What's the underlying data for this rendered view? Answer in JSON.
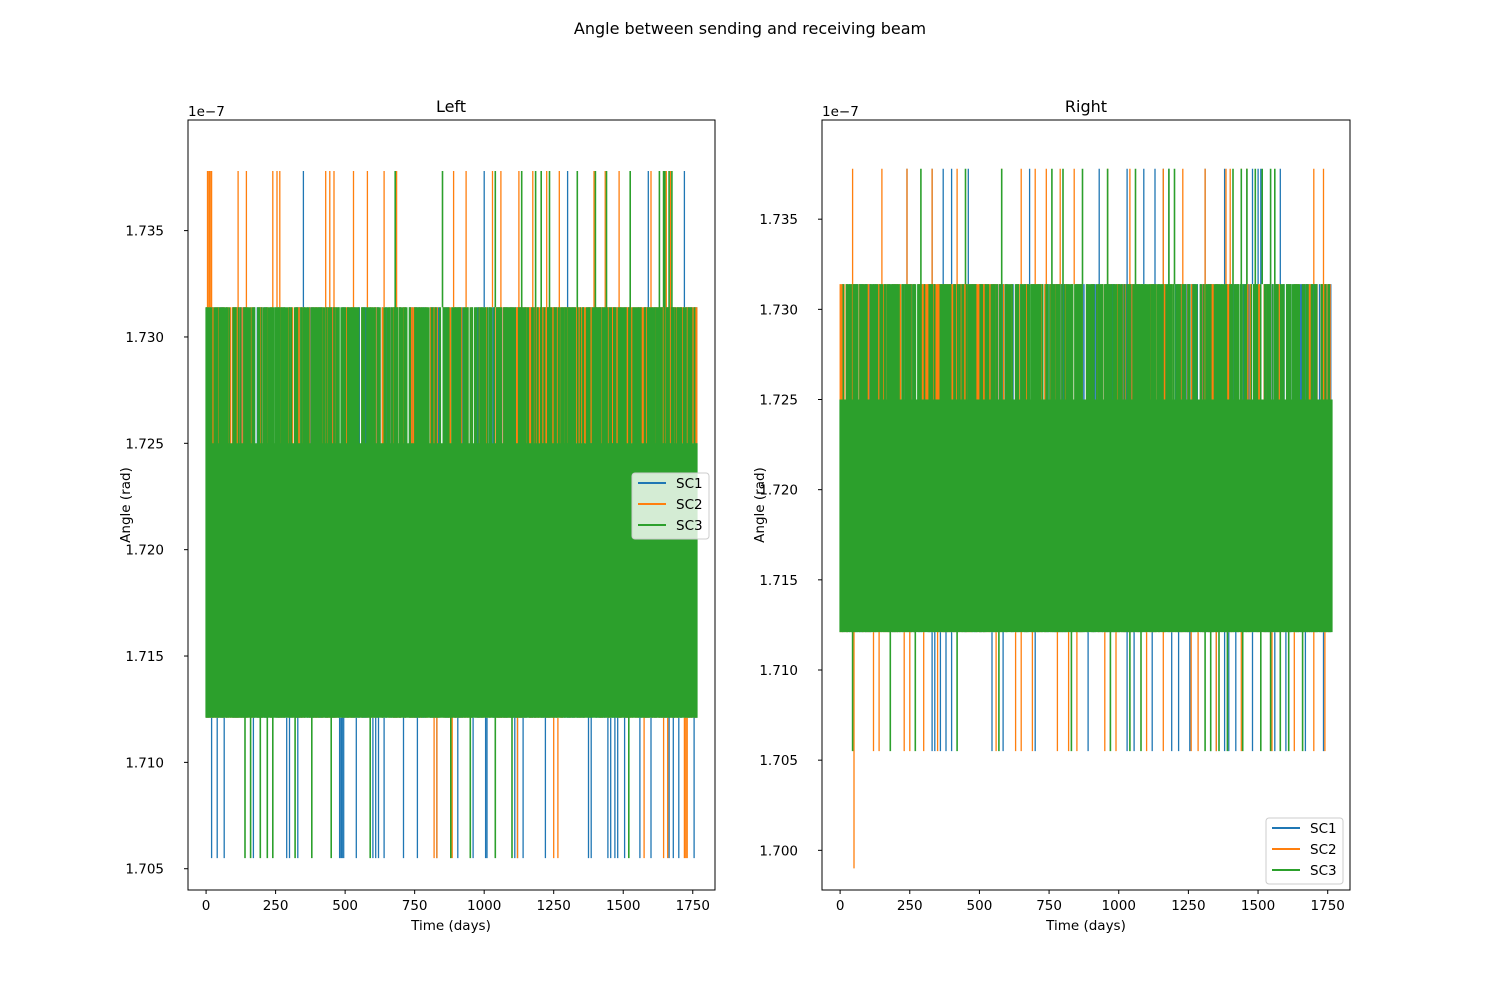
{
  "figure": {
    "suptitle": "Angle between sending and receiving beam"
  },
  "colors": {
    "SC1": "#1f77b4",
    "SC2": "#ff7f0e",
    "SC3": "#2ca02c",
    "axes": "#000000",
    "background": "#ffffff"
  },
  "chart_data": [
    {
      "type": "line",
      "title": "Left",
      "xlabel": "Time (days)",
      "ylabel": "Angle (rad)",
      "y_offset_text": "1e−7",
      "xlim": [
        -65,
        1830
      ],
      "ylim": [
        1.704,
        1.7402
      ],
      "xticks": [
        0,
        250,
        500,
        750,
        1000,
        1250,
        1500,
        1750
      ],
      "yticks": [
        1.705,
        1.71,
        1.715,
        1.72,
        1.725,
        1.73,
        1.735
      ],
      "ytick_labels": [
        "1.705",
        "1.710",
        "1.715",
        "1.720",
        "1.725",
        "1.730",
        "1.735"
      ],
      "grid": false,
      "legend": {
        "placement": "center-right",
        "entries": [
          "SC1",
          "SC2",
          "SC3"
        ]
      },
      "levels": [
        1.7055,
        1.7121,
        1.7185,
        1.725,
        1.7314,
        1.7378
      ],
      "x_range": [
        0,
        1765
      ],
      "series": [
        {
          "name": "SC1",
          "base_band": [
            1.7121,
            1.7314
          ],
          "spikes_low": [
            20,
            40,
            65,
            170,
            290,
            300,
            330,
            480,
            485,
            490,
            495,
            540,
            600,
            610,
            620,
            640,
            710,
            760,
            830,
            905,
            960,
            1005,
            1010,
            1110,
            1120,
            1140,
            1220,
            1375,
            1385,
            1445,
            1455,
            1470,
            1480,
            1505,
            1560,
            1600,
            1665,
            1680,
            1700,
            1755
          ],
          "spikes_high": [
            350,
            1000,
            1300,
            1590,
            1720
          ]
        },
        {
          "name": "SC2",
          "base_band": [
            1.7121,
            1.7314
          ],
          "dense_band": {
            "from": 1120,
            "to": 1765,
            "range": [
              1.725,
              1.7314
            ]
          },
          "spikes_low": [
            820,
            830,
            885,
            1120,
            1250,
            1265,
            1575,
            1645,
            1660,
            1720,
            1725,
            1730
          ],
          "spikes_high": [
            5,
            10,
            15,
            20,
            115,
            145,
            240,
            255,
            265,
            430,
            445,
            460,
            530,
            580,
            640,
            685,
            890,
            935,
            1030,
            1060,
            1125,
            1175,
            1225,
            1270,
            1395,
            1435,
            1485,
            1525,
            1600,
            1645,
            1655,
            1670
          ]
        },
        {
          "name": "SC3",
          "base_band": [
            1.7121,
            1.7314
          ],
          "dense_band": {
            "from": 0,
            "to": 1765,
            "range": [
              1.7121,
              1.725
            ]
          },
          "spikes_low": [
            140,
            160,
            195,
            220,
            240,
            320,
            380,
            450,
            590,
            880,
            950,
            1040,
            1100,
            1520
          ],
          "spikes_high": [
            680,
            850,
            1040,
            1135,
            1185,
            1205,
            1235,
            1335,
            1400,
            1440,
            1525,
            1630,
            1645,
            1650,
            1665,
            1675
          ]
        }
      ]
    },
    {
      "type": "line",
      "title": "Right",
      "xlabel": "Time (days)",
      "ylabel": "Angle (rad)",
      "y_offset_text": "1e−7",
      "xlim": [
        -65,
        1830
      ],
      "ylim": [
        1.6978,
        1.7405
      ],
      "xticks": [
        0,
        250,
        500,
        750,
        1000,
        1250,
        1500,
        1750
      ],
      "yticks": [
        1.7,
        1.705,
        1.71,
        1.715,
        1.72,
        1.725,
        1.73,
        1.735
      ],
      "ytick_labels": [
        "1.700",
        "1.705",
        "1.710",
        "1.715",
        "1.720",
        "1.725",
        "1.730",
        "1.735"
      ],
      "grid": false,
      "legend": {
        "placement": "lower right",
        "entries": [
          "SC1",
          "SC2",
          "SC3"
        ]
      },
      "levels": [
        1.699,
        1.7055,
        1.7121,
        1.7185,
        1.725,
        1.7314,
        1.7378
      ],
      "x_range": [
        0,
        1765
      ],
      "series": [
        {
          "name": "SC1",
          "base_band": [
            1.7121,
            1.7314
          ],
          "spikes_low": [
            330,
            340,
            360,
            380,
            400,
            545,
            585,
            700,
            890,
            1030,
            1055,
            1120,
            1190,
            1215,
            1255,
            1330,
            1350,
            1380,
            1395,
            1420,
            1480,
            1560,
            1600,
            1670,
            1735
          ],
          "spikes_high": [
            240,
            330,
            370,
            400,
            460,
            680,
            930,
            1030,
            1090,
            1130,
            1160,
            1180,
            1310,
            1380,
            1460,
            1480,
            1500,
            1510,
            1580
          ]
        },
        {
          "name": "SC2",
          "base_band": [
            1.7121,
            1.7314
          ],
          "dense_band": {
            "from": 280,
            "to": 560,
            "range": [
              1.725,
              1.7314
            ]
          },
          "spikes_low": [
            120,
            140,
            230,
            250,
            300,
            350,
            560,
            630,
            650,
            690,
            780,
            820,
            850,
            950,
            990,
            1100,
            1160,
            1260,
            1285,
            1350,
            1440,
            1550,
            1630,
            1700,
            1740
          ],
          "spikes_deep": [
            50
          ],
          "spikes_high": [
            45,
            150,
            240,
            330,
            420,
            580,
            650,
            700,
            740,
            790,
            840,
            960,
            1040,
            1160,
            1230,
            1310,
            1385,
            1400,
            1440,
            1460,
            1700,
            1735
          ]
        },
        {
          "name": "SC3",
          "base_band": [
            1.7121,
            1.7314
          ],
          "dense_band": {
            "from": 0,
            "to": 1765,
            "range": [
              1.7121,
              1.725
            ]
          },
          "spikes_low": [
            45,
            180,
            270,
            420,
            570,
            830,
            970,
            1040,
            1080,
            1310,
            1330,
            1360,
            1390,
            1445,
            1510,
            1545,
            1580,
            1610,
            1660
          ],
          "spikes_high": [
            290,
            450,
            580,
            760,
            800,
            870,
            960,
            1060,
            1180,
            1200,
            1410,
            1440,
            1460,
            1490,
            1515,
            1545,
            1560
          ]
        }
      ]
    }
  ]
}
